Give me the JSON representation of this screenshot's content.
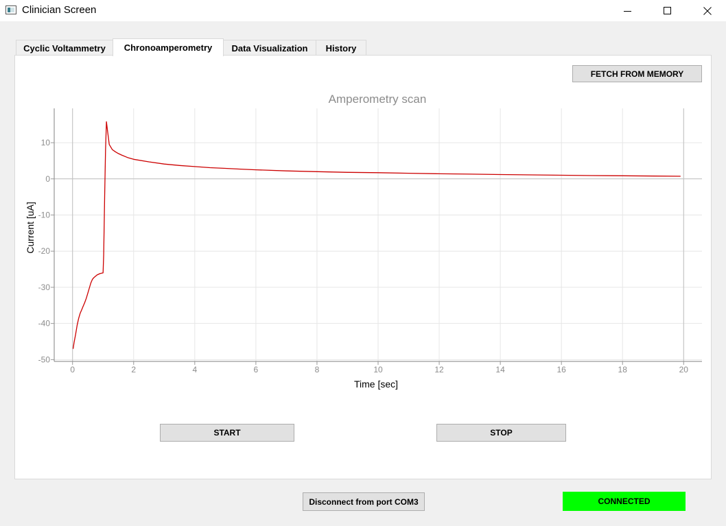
{
  "window": {
    "title": "Clinician Screen"
  },
  "tabs": [
    {
      "label": "Cyclic Voltammetry",
      "active": false
    },
    {
      "label": "Chronoamperometry",
      "active": true
    },
    {
      "label": "Data Visualization",
      "active": false
    },
    {
      "label": "History",
      "active": false
    }
  ],
  "buttons": {
    "fetch": "FETCH FROM MEMORY",
    "start": "START",
    "stop": "STOP",
    "disconnect": "Disconnect from port COM3"
  },
  "status": {
    "label": "CONNECTED",
    "color": "#00ff00"
  },
  "chart_data": {
    "type": "line",
    "title": "Amperometry scan",
    "xlabel": "Time [sec]",
    "ylabel": "Current [uA]",
    "xlim": [
      -0.6,
      20.6
    ],
    "ylim": [
      -50.5,
      19.5
    ],
    "xticks": [
      0,
      2,
      4,
      6,
      8,
      10,
      12,
      14,
      16,
      18,
      20
    ],
    "yticks": [
      -50,
      -40,
      -30,
      -20,
      -10,
      0,
      10
    ],
    "grid": true,
    "line_color": "#cc0000",
    "series": [
      {
        "x": [
          0.02,
          0.05,
          0.1,
          0.15,
          0.2,
          0.25,
          0.3,
          0.35,
          0.4,
          0.45,
          0.5,
          0.55,
          0.6,
          0.65,
          0.7,
          0.8,
          0.9,
          1.0,
          1.02,
          1.05,
          1.08,
          1.11,
          1.15,
          1.2,
          1.3,
          1.4,
          1.5,
          1.6,
          1.8,
          2.0,
          2.5,
          3.0,
          3.5,
          4.0,
          4.5,
          5.0,
          5.5,
          6.0,
          7.0,
          8.0,
          9.0,
          10.0,
          11.0,
          12.0,
          13.0,
          14.0,
          15.0,
          16.0,
          17.0,
          18.0,
          19.0,
          19.9
        ],
        "y": [
          -47.0,
          -45.3,
          -43.0,
          -40.5,
          -38.6,
          -37.2,
          -36.2,
          -35.2,
          -34.2,
          -33.0,
          -31.6,
          -30.2,
          -28.8,
          -27.8,
          -27.3,
          -26.6,
          -26.2,
          -26.0,
          -21.0,
          -5.0,
          8.0,
          15.8,
          13.0,
          9.5,
          8.1,
          7.5,
          7.0,
          6.6,
          5.9,
          5.4,
          4.7,
          4.1,
          3.7,
          3.4,
          3.1,
          2.9,
          2.7,
          2.5,
          2.2,
          2.0,
          1.8,
          1.7,
          1.55,
          1.4,
          1.3,
          1.2,
          1.1,
          1.0,
          0.9,
          0.85,
          0.78,
          0.72
        ]
      }
    ]
  }
}
